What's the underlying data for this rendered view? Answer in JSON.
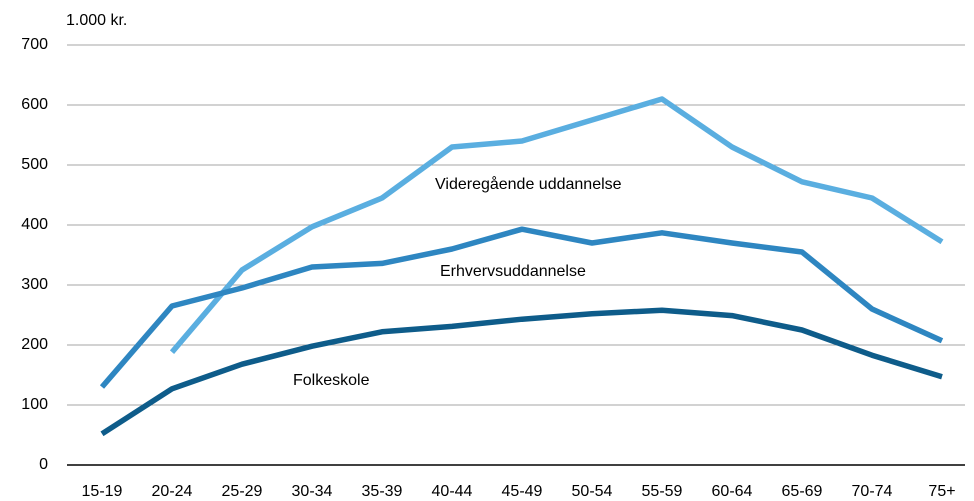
{
  "chart_data": {
    "type": "line",
    "y_label": "1.000 kr.",
    "categories": [
      "15-19",
      "20-24",
      "25-29",
      "30-34",
      "35-39",
      "40-44",
      "45-49",
      "50-54",
      "55-59",
      "60-64",
      "65-69",
      "70-74",
      "75+"
    ],
    "series": [
      {
        "name": "Videregående uddannelse",
        "color": "#5aaee0",
        "values": [
          null,
          188,
          325,
          397,
          445,
          530,
          540,
          575,
          610,
          530,
          472,
          445,
          372
        ]
      },
      {
        "name": "Erhvervsuddannelse",
        "color": "#2e86c1",
        "values": [
          130,
          265,
          295,
          330,
          336,
          360,
          393,
          370,
          387,
          370,
          355,
          260,
          207
        ]
      },
      {
        "name": "Folkeskole",
        "color": "#0e5c8a",
        "values": [
          52,
          127,
          168,
          198,
          222,
          231,
          243,
          252,
          258,
          249,
          225,
          183,
          147
        ]
      }
    ],
    "ylim": [
      0,
      700
    ],
    "yticks": [
      0,
      100,
      200,
      300,
      400,
      500,
      600,
      700
    ],
    "grid": true
  }
}
